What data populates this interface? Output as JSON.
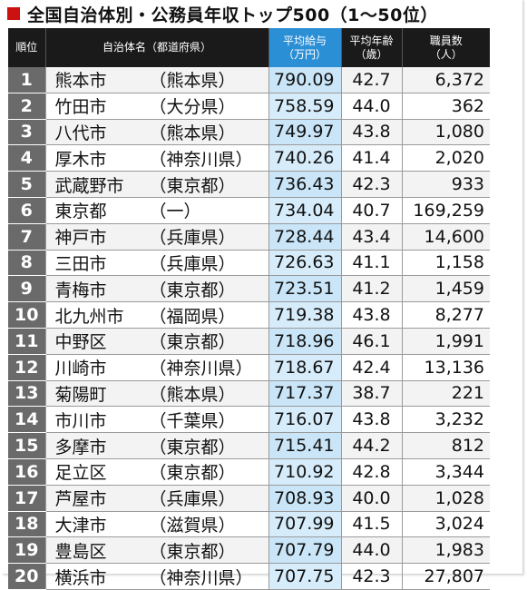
{
  "title": "全国自治体別・公務員年収トップ500（1〜50位）",
  "colors": {
    "header_bg": "#1a1a1a",
    "salary_header_bg": "#2b8fd6",
    "rank_bg": "#6a6a6a",
    "title_mark": "#cc1111",
    "salary_col_bg": "#c9e5f7"
  },
  "headers": {
    "rank": "順位",
    "name": "自治体名（都道府県）",
    "salary_line1": "平均給与",
    "salary_line2": "（万円）",
    "age_line1": "平均年齢",
    "age_line2": "（歳）",
    "staff_line1": "職員数",
    "staff_line2": "（人）"
  },
  "rows": [
    {
      "rank": "1",
      "muni": "熊本市",
      "pref": "（熊本県）",
      "salary": "790.09",
      "age": "42.7",
      "staff": "6,372"
    },
    {
      "rank": "2",
      "muni": "竹田市",
      "pref": "（大分県）",
      "salary": "758.59",
      "age": "44.0",
      "staff": "362"
    },
    {
      "rank": "3",
      "muni": "八代市",
      "pref": "（熊本県）",
      "salary": "749.97",
      "age": "43.8",
      "staff": "1,080"
    },
    {
      "rank": "4",
      "muni": "厚木市",
      "pref": "（神奈川県）",
      "salary": "740.26",
      "age": "41.4",
      "staff": "2,020"
    },
    {
      "rank": "5",
      "muni": "武蔵野市",
      "pref": "（東京都）",
      "salary": "736.43",
      "age": "42.3",
      "staff": "933"
    },
    {
      "rank": "6",
      "muni": "東京都",
      "pref": "（一）",
      "salary": "734.04",
      "age": "40.7",
      "staff": "169,259"
    },
    {
      "rank": "7",
      "muni": "神戸市",
      "pref": "（兵庫県）",
      "salary": "728.44",
      "age": "43.4",
      "staff": "14,600"
    },
    {
      "rank": "8",
      "muni": "三田市",
      "pref": "（兵庫県）",
      "salary": "726.63",
      "age": "41.1",
      "staff": "1,158"
    },
    {
      "rank": "9",
      "muni": "青梅市",
      "pref": "（東京都）",
      "salary": "723.51",
      "age": "41.2",
      "staff": "1,459"
    },
    {
      "rank": "10",
      "muni": "北九州市",
      "pref": "（福岡県）",
      "salary": "719.38",
      "age": "43.8",
      "staff": "8,277"
    },
    {
      "rank": "11",
      "muni": "中野区",
      "pref": "（東京都）",
      "salary": "718.96",
      "age": "46.1",
      "staff": "1,991"
    },
    {
      "rank": "12",
      "muni": "川崎市",
      "pref": "（神奈川県）",
      "salary": "718.67",
      "age": "42.4",
      "staff": "13,136"
    },
    {
      "rank": "13",
      "muni": "菊陽町",
      "pref": "（熊本県）",
      "salary": "717.37",
      "age": "38.7",
      "staff": "221"
    },
    {
      "rank": "14",
      "muni": "市川市",
      "pref": "（千葉県）",
      "salary": "716.07",
      "age": "43.8",
      "staff": "3,232"
    },
    {
      "rank": "15",
      "muni": "多摩市",
      "pref": "（東京都）",
      "salary": "715.41",
      "age": "44.2",
      "staff": "812"
    },
    {
      "rank": "16",
      "muni": "足立区",
      "pref": "（東京都）",
      "salary": "710.92",
      "age": "42.8",
      "staff": "3,344"
    },
    {
      "rank": "17",
      "muni": "芦屋市",
      "pref": "（兵庫県）",
      "salary": "708.93",
      "age": "40.0",
      "staff": "1,028"
    },
    {
      "rank": "18",
      "muni": "大津市",
      "pref": "（滋賀県）",
      "salary": "707.99",
      "age": "41.5",
      "staff": "3,024"
    },
    {
      "rank": "19",
      "muni": "豊島区",
      "pref": "（東京都）",
      "salary": "707.79",
      "age": "44.0",
      "staff": "1,983"
    },
    {
      "rank": "20",
      "muni": "横浜市",
      "pref": "（神奈川県）",
      "salary": "707.75",
      "age": "42.3",
      "staff": "27,807"
    }
  ]
}
